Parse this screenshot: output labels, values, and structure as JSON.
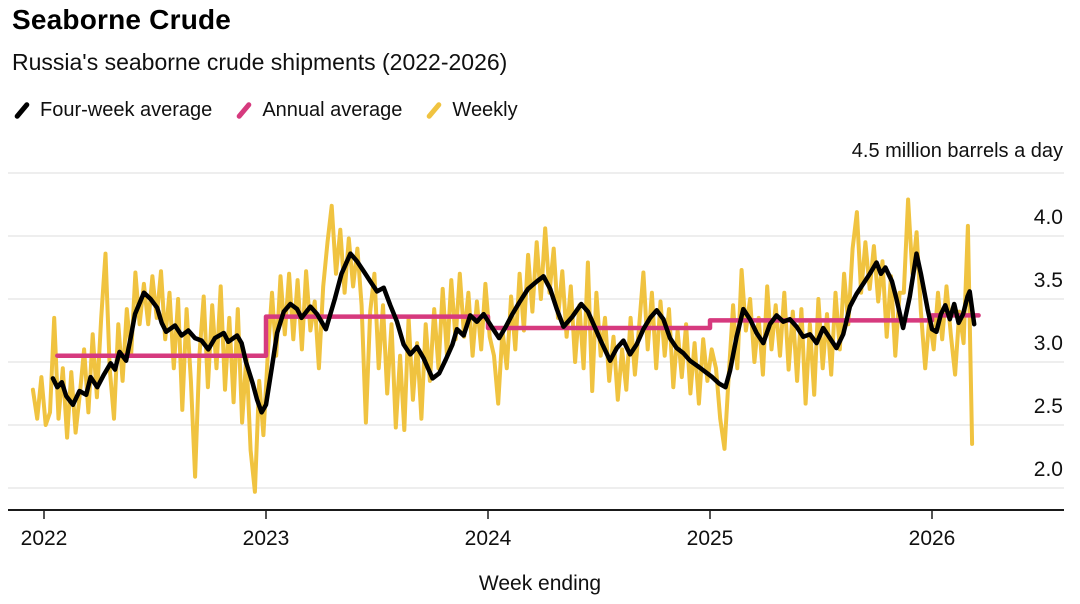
{
  "title": "Seaborne Crude",
  "subtitle": "Russia's seaborne crude shipments (2022-2026)",
  "unit_label": "4.5 million barrels a day",
  "xlabel": "Week ending",
  "colors": {
    "weekly": "#f0c340",
    "four_week_avg": "#000000",
    "annual_avg": "#d63a7e",
    "gridline": "#dcdcdc",
    "axis": "#1a1a1a",
    "background": "#ffffff"
  },
  "legend": [
    {
      "label": "Four-week average",
      "color": "#000000"
    },
    {
      "label": "Annual average",
      "color": "#d63a7e"
    },
    {
      "label": "Weekly",
      "color": "#f0c340"
    }
  ],
  "chart_data": {
    "type": "line",
    "title": "Seaborne Crude",
    "subtitle": "Russia's seaborne crude shipments (2022-2026)",
    "unit": "million barrels a day",
    "xlabel": "Week ending",
    "grid": true,
    "legend_position": "top-left",
    "xlim": [
      2021.93,
      2026.25
    ],
    "ylim": [
      1.82,
      4.5
    ],
    "gridline_values": [
      2.0,
      2.5,
      3.0,
      3.5,
      4.0,
      4.5
    ],
    "y_tick_values": [
      4.0,
      3.5,
      3.0,
      2.5,
      2.0
    ],
    "y_tick_labels": [
      "4.0",
      "3.5",
      "3.0",
      "2.5",
      "2.0"
    ],
    "x_tick_values": [
      2022,
      2023,
      2024,
      2025,
      2026
    ],
    "x_tick_labels": [
      "2022",
      "2023",
      "2024",
      "2025",
      "2026"
    ],
    "series": [
      {
        "name": "Weekly",
        "color": "#f0c340",
        "width": 4,
        "x_start": 2021.95,
        "x_step": 0.0192308,
        "values": [
          2.78,
          2.55,
          2.88,
          2.5,
          2.6,
          3.35,
          2.55,
          2.95,
          2.4,
          2.92,
          2.44,
          2.75,
          3.1,
          2.6,
          3.22,
          2.72,
          3.35,
          3.86,
          2.95,
          2.55,
          3.3,
          2.85,
          3.42,
          3.05,
          3.71,
          3.3,
          3.62,
          3.3,
          3.68,
          3.35,
          3.72,
          3.18,
          3.55,
          2.95,
          3.5,
          2.62,
          3.42,
          2.85,
          2.09,
          3.05,
          3.52,
          2.8,
          3.45,
          2.95,
          3.6,
          2.78,
          3.35,
          2.68,
          3.42,
          2.52,
          3.05,
          2.3,
          1.97,
          2.85,
          2.42,
          3.05,
          3.55,
          3.05,
          3.68,
          3.22,
          3.7,
          3.18,
          3.65,
          3.1,
          3.72,
          3.25,
          3.48,
          2.95,
          3.6,
          3.95,
          4.24,
          3.7,
          4.05,
          3.55,
          3.98,
          3.6,
          3.9,
          3.45,
          2.52,
          3.4,
          3.7,
          2.95,
          3.45,
          2.75,
          3.3,
          2.48,
          3.05,
          2.46,
          3.35,
          2.7,
          3.15,
          2.55,
          3.3,
          2.85,
          3.42,
          2.95,
          3.58,
          3.05,
          3.65,
          3.18,
          3.7,
          3.2,
          3.55,
          3.05,
          3.48,
          3.1,
          3.62,
          3.2,
          3.05,
          2.67,
          3.25,
          2.95,
          3.52,
          3.1,
          3.7,
          3.25,
          3.85,
          3.4,
          3.95,
          3.5,
          4.06,
          3.55,
          3.9,
          3.35,
          3.72,
          3.2,
          3.6,
          3.0,
          3.45,
          2.95,
          3.79,
          2.77,
          3.55,
          3.05,
          3.35,
          2.85,
          3.2,
          2.7,
          3.1,
          2.78,
          3.35,
          2.9,
          3.28,
          3.71,
          3.1,
          3.55,
          2.95,
          3.48,
          3.05,
          3.42,
          2.8,
          3.25,
          2.88,
          3.3,
          2.75,
          3.15,
          2.67,
          3.18,
          2.85,
          3.1,
          2.95,
          2.55,
          2.31,
          2.9,
          3.45,
          2.95,
          3.73,
          3.25,
          3.5,
          3.0,
          3.35,
          2.9,
          3.6,
          3.1,
          3.45,
          3.05,
          3.55,
          2.94,
          3.4,
          2.85,
          3.42,
          2.67,
          3.3,
          2.74,
          3.5,
          2.95,
          3.38,
          2.9,
          3.55,
          3.1,
          3.7,
          3.3,
          3.9,
          4.19,
          3.55,
          3.95,
          3.58,
          3.92,
          3.48,
          3.8,
          3.2,
          3.68,
          3.05,
          3.55,
          3.55,
          4.29,
          3.7,
          4.03,
          3.4,
          2.95,
          3.35,
          3.1,
          3.55,
          3.18,
          3.6,
          3.22,
          2.9,
          3.4,
          3.15,
          4.08,
          2.35
        ]
      },
      {
        "name": "Four-week average",
        "color": "#000000",
        "width": 4.5,
        "points": [
          [
            2022.04,
            2.87
          ],
          [
            2022.06,
            2.8
          ],
          [
            2022.08,
            2.84
          ],
          [
            2022.1,
            2.73
          ],
          [
            2022.13,
            2.66
          ],
          [
            2022.16,
            2.77
          ],
          [
            2022.19,
            2.74
          ],
          [
            2022.21,
            2.88
          ],
          [
            2022.24,
            2.8
          ],
          [
            2022.27,
            2.9
          ],
          [
            2022.3,
            2.99
          ],
          [
            2022.32,
            2.94
          ],
          [
            2022.34,
            3.08
          ],
          [
            2022.37,
            3.01
          ],
          [
            2022.39,
            3.19
          ],
          [
            2022.41,
            3.38
          ],
          [
            2022.45,
            3.55
          ],
          [
            2022.48,
            3.5
          ],
          [
            2022.51,
            3.43
          ],
          [
            2022.53,
            3.31
          ],
          [
            2022.55,
            3.24
          ],
          [
            2022.59,
            3.29
          ],
          [
            2022.62,
            3.21
          ],
          [
            2022.65,
            3.25
          ],
          [
            2022.68,
            3.19
          ],
          [
            2022.71,
            3.17
          ],
          [
            2022.74,
            3.1
          ],
          [
            2022.77,
            3.19
          ],
          [
            2022.81,
            3.23
          ],
          [
            2022.83,
            3.16
          ],
          [
            2022.87,
            3.21
          ],
          [
            2022.89,
            3.15
          ],
          [
            2022.91,
            3.0
          ],
          [
            2022.94,
            2.83
          ],
          [
            2022.96,
            2.7
          ],
          [
            2022.98,
            2.6
          ],
          [
            2023.0,
            2.66
          ],
          [
            2023.03,
            3.0
          ],
          [
            2023.05,
            3.23
          ],
          [
            2023.08,
            3.4
          ],
          [
            2023.11,
            3.46
          ],
          [
            2023.14,
            3.42
          ],
          [
            2023.16,
            3.35
          ],
          [
            2023.2,
            3.44
          ],
          [
            2023.23,
            3.38
          ],
          [
            2023.27,
            3.26
          ],
          [
            2023.31,
            3.5
          ],
          [
            2023.34,
            3.7
          ],
          [
            2023.38,
            3.86
          ],
          [
            2023.41,
            3.8
          ],
          [
            2023.44,
            3.72
          ],
          [
            2023.47,
            3.64
          ],
          [
            2023.5,
            3.56
          ],
          [
            2023.53,
            3.59
          ],
          [
            2023.56,
            3.45
          ],
          [
            2023.59,
            3.32
          ],
          [
            2023.62,
            3.14
          ],
          [
            2023.65,
            3.06
          ],
          [
            2023.68,
            3.12
          ],
          [
            2023.71,
            3.03
          ],
          [
            2023.75,
            2.87
          ],
          [
            2023.78,
            2.91
          ],
          [
            2023.81,
            3.02
          ],
          [
            2023.84,
            3.14
          ],
          [
            2023.86,
            3.26
          ],
          [
            2023.89,
            3.21
          ],
          [
            2023.92,
            3.37
          ],
          [
            2023.95,
            3.32
          ],
          [
            2023.98,
            3.38
          ],
          [
            2024.02,
            3.27
          ],
          [
            2024.05,
            3.19
          ],
          [
            2024.08,
            3.28
          ],
          [
            2024.11,
            3.38
          ],
          [
            2024.14,
            3.47
          ],
          [
            2024.18,
            3.58
          ],
          [
            2024.22,
            3.64
          ],
          [
            2024.25,
            3.68
          ],
          [
            2024.28,
            3.58
          ],
          [
            2024.31,
            3.42
          ],
          [
            2024.34,
            3.28
          ],
          [
            2024.38,
            3.36
          ],
          [
            2024.42,
            3.46
          ],
          [
            2024.45,
            3.4
          ],
          [
            2024.48,
            3.28
          ],
          [
            2024.51,
            3.16
          ],
          [
            2024.55,
            3.01
          ],
          [
            2024.58,
            3.11
          ],
          [
            2024.61,
            3.17
          ],
          [
            2024.64,
            3.06
          ],
          [
            2024.67,
            3.14
          ],
          [
            2024.7,
            3.26
          ],
          [
            2024.73,
            3.35
          ],
          [
            2024.76,
            3.41
          ],
          [
            2024.79,
            3.34
          ],
          [
            2024.82,
            3.19
          ],
          [
            2024.85,
            3.11
          ],
          [
            2024.88,
            3.07
          ],
          [
            2024.91,
            3.01
          ],
          [
            2024.95,
            2.96
          ],
          [
            2024.98,
            2.92
          ],
          [
            2025.01,
            2.88
          ],
          [
            2025.04,
            2.83
          ],
          [
            2025.07,
            2.8
          ],
          [
            2025.09,
            2.93
          ],
          [
            2025.12,
            3.2
          ],
          [
            2025.15,
            3.42
          ],
          [
            2025.18,
            3.34
          ],
          [
            2025.21,
            3.23
          ],
          [
            2025.24,
            3.15
          ],
          [
            2025.27,
            3.3
          ],
          [
            2025.3,
            3.37
          ],
          [
            2025.33,
            3.32
          ],
          [
            2025.36,
            3.34
          ],
          [
            2025.39,
            3.28
          ],
          [
            2025.42,
            3.2
          ],
          [
            2025.45,
            3.22
          ],
          [
            2025.48,
            3.15
          ],
          [
            2025.51,
            3.27
          ],
          [
            2025.54,
            3.19
          ],
          [
            2025.57,
            3.11
          ],
          [
            2025.6,
            3.22
          ],
          [
            2025.63,
            3.44
          ],
          [
            2025.66,
            3.54
          ],
          [
            2025.69,
            3.62
          ],
          [
            2025.72,
            3.7
          ],
          [
            2025.75,
            3.79
          ],
          [
            2025.77,
            3.7
          ],
          [
            2025.79,
            3.75
          ],
          [
            2025.82,
            3.64
          ],
          [
            2025.84,
            3.5
          ],
          [
            2025.87,
            3.27
          ],
          [
            2025.9,
            3.52
          ],
          [
            2025.93,
            3.86
          ],
          [
            2025.95,
            3.7
          ],
          [
            2025.98,
            3.42
          ],
          [
            2026.0,
            3.26
          ],
          [
            2026.02,
            3.24
          ],
          [
            2026.04,
            3.38
          ],
          [
            2026.06,
            3.45
          ],
          [
            2026.08,
            3.34
          ],
          [
            2026.1,
            3.46
          ],
          [
            2026.12,
            3.31
          ],
          [
            2026.14,
            3.38
          ],
          [
            2026.16,
            3.52
          ],
          [
            2026.17,
            3.56
          ],
          [
            2026.19,
            3.3
          ]
        ]
      },
      {
        "name": "Annual average",
        "color": "#d63a7e",
        "width": 4.5,
        "step_segments": [
          {
            "from": 2022.06,
            "to": 2023.0,
            "value": 3.05
          },
          {
            "from": 2023.0,
            "to": 2024.0,
            "value": 3.36
          },
          {
            "from": 2024.0,
            "to": 2025.0,
            "value": 3.27
          },
          {
            "from": 2025.0,
            "to": 2026.0,
            "value": 3.33
          },
          {
            "from": 2026.0,
            "to": 2026.21,
            "value": 3.37
          }
        ]
      }
    ]
  }
}
